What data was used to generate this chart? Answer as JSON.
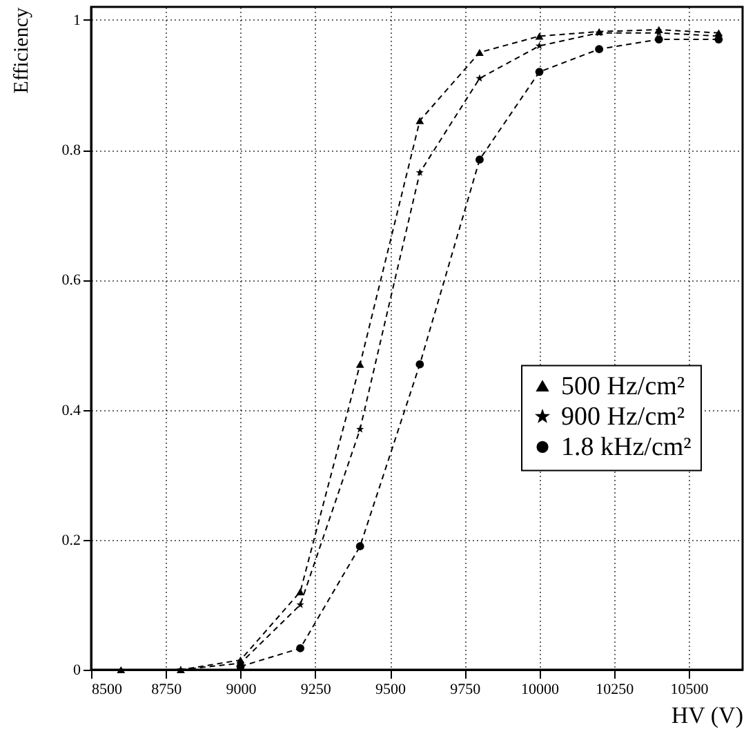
{
  "chart_data": {
    "type": "line",
    "xlabel": "HV (V)",
    "ylabel": "Efficiency",
    "xlim": [
      8500,
      10680
    ],
    "ylim": [
      0,
      1.02
    ],
    "xticks": [
      8500,
      8750,
      9000,
      9250,
      9500,
      9750,
      10000,
      10250,
      10500
    ],
    "yticks": [
      0,
      0.2,
      0.4,
      0.6,
      0.8,
      1
    ],
    "grid": true,
    "legend": "right",
    "line_style": "dashed",
    "series": [
      {
        "name": "500 Hz/cm²",
        "color": "#000000",
        "marker": "triangle",
        "x": [
          8600,
          8800,
          9000,
          9200,
          9400,
          9600,
          9800,
          10000,
          10200,
          10400,
          10600
        ],
        "values": [
          0,
          0,
          0.015,
          0.12,
          0.47,
          0.845,
          0.95,
          0.975,
          0.982,
          0.985,
          0.98
        ]
      },
      {
        "name": "900 Hz/cm²",
        "color": "#000000",
        "marker": "star",
        "x": [
          8800,
          9000,
          9200,
          9400,
          9600,
          9800,
          10000,
          10200,
          10400,
          10600
        ],
        "values": [
          0,
          0.01,
          0.1,
          0.37,
          0.765,
          0.91,
          0.96,
          0.98,
          0.98,
          0.975
        ]
      },
      {
        "name": "1.8 kHz/cm²",
        "color": "#000000",
        "marker": "circle",
        "x": [
          9000,
          9200,
          9400,
          9600,
          9800,
          10000,
          10200,
          10400,
          10600
        ],
        "values": [
          0.005,
          0.033,
          0.19,
          0.47,
          0.785,
          0.92,
          0.955,
          0.97,
          0.97
        ]
      }
    ]
  }
}
